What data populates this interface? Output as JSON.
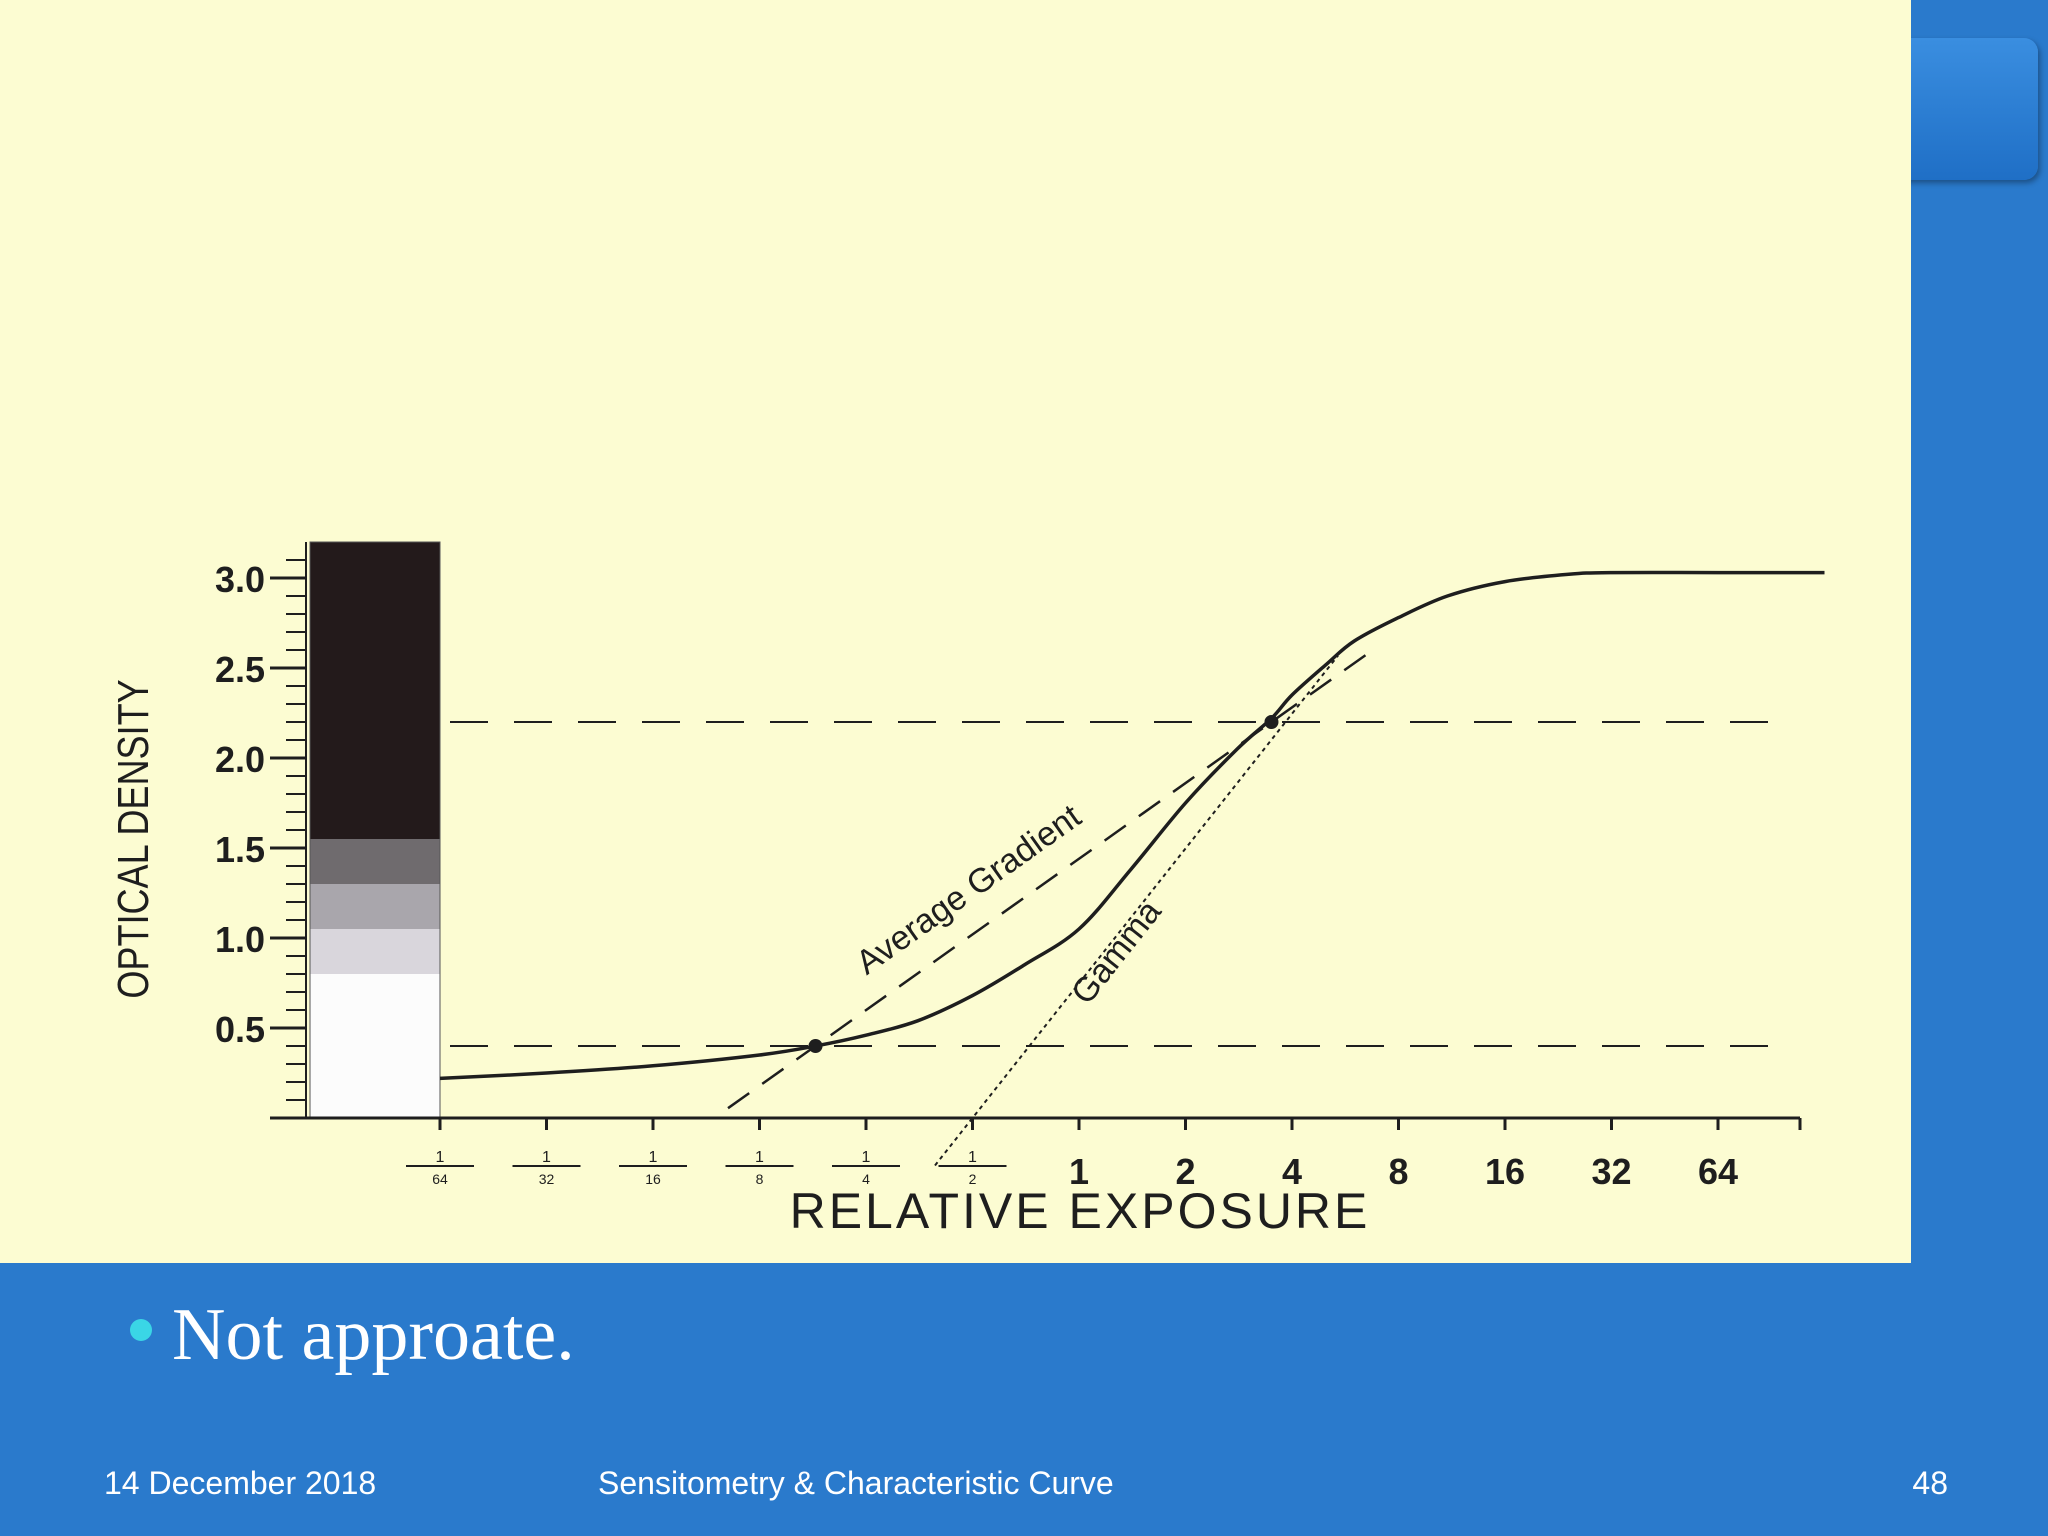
{
  "chart_data": {
    "type": "line",
    "title": "",
    "ylabel": "OPTICAL DENSITY",
    "xlabel": "RELATIVE EXPOSURE",
    "ylim": [
      0,
      3.2
    ],
    "yticks": [
      0.5,
      1.0,
      1.5,
      2.0,
      2.5,
      3.0
    ],
    "ytick_labels": [
      "0.5",
      "1.0",
      "1.5",
      "2.0",
      "2.5",
      "3.0"
    ],
    "x_scale": "log2",
    "xticks": [
      0.015625,
      0.03125,
      0.0625,
      0.125,
      0.25,
      0.5,
      1,
      2,
      4,
      8,
      16,
      32,
      64
    ],
    "xtick_labels": [
      {
        "num": "1",
        "den": "64"
      },
      {
        "num": "1",
        "den": "32"
      },
      {
        "num": "1",
        "den": "16"
      },
      {
        "num": "1",
        "den": "8"
      },
      {
        "num": "1",
        "den": "4"
      },
      {
        "num": "1",
        "den": "2"
      },
      {
        "text": "1"
      },
      {
        "text": "2"
      },
      {
        "text": "4"
      },
      {
        "text": "8"
      },
      {
        "text": "16"
      },
      {
        "text": "32"
      },
      {
        "text": "64"
      }
    ],
    "grid": false,
    "series": [
      {
        "values_x": [
          0.015625,
          0.03125,
          0.0625,
          0.125,
          0.18,
          0.25,
          0.35,
          0.5,
          0.7,
          1,
          1.4,
          2,
          2.8,
          3.5,
          4,
          5,
          6,
          8,
          11,
          16,
          24,
          32,
          64,
          128
        ],
        "values_y": [
          0.22,
          0.25,
          0.29,
          0.35,
          0.4,
          0.46,
          0.54,
          0.68,
          0.85,
          1.05,
          1.38,
          1.75,
          2.05,
          2.22,
          2.35,
          2.52,
          2.65,
          2.78,
          2.9,
          2.98,
          3.02,
          3.03,
          3.03,
          3.03
        ]
      }
    ],
    "reference_lines": {
      "horizontal_dashed": [
        0.4,
        2.2
      ],
      "average_gradient": {
        "label": "Average Gradient",
        "points": [
          [
            0.18,
            0.4
          ],
          [
            3.5,
            2.2
          ]
        ]
      },
      "gamma": {
        "label": "Gamma",
        "points": [
          [
            0.5,
            0.0
          ],
          [
            7,
            2.85
          ]
        ]
      }
    },
    "marked_points": [
      [
        0.18,
        0.4
      ],
      [
        3.5,
        2.2
      ]
    ],
    "step_wedge": [
      {
        "from": 0.0,
        "to": 0.8,
        "color": "#fcfcfc"
      },
      {
        "from": 0.8,
        "to": 1.05,
        "color": "#d9d6dc"
      },
      {
        "from": 1.05,
        "to": 1.3,
        "color": "#a9a6ac"
      },
      {
        "from": 1.3,
        "to": 1.55,
        "color": "#6f6b6e"
      },
      {
        "from": 1.55,
        "to": 3.2,
        "color": "#231a1b"
      }
    ]
  },
  "slide": {
    "bullet": "Not approate.",
    "footer_date": "14 December 2018",
    "footer_title": "Sensitometry & Characteristic Curve",
    "page_number": "48"
  },
  "colors": {
    "background": "#2a7acc",
    "figure_bg": "#fcfcd2",
    "ink": "#1e1e1e",
    "bullet": "#3ad6e6"
  }
}
